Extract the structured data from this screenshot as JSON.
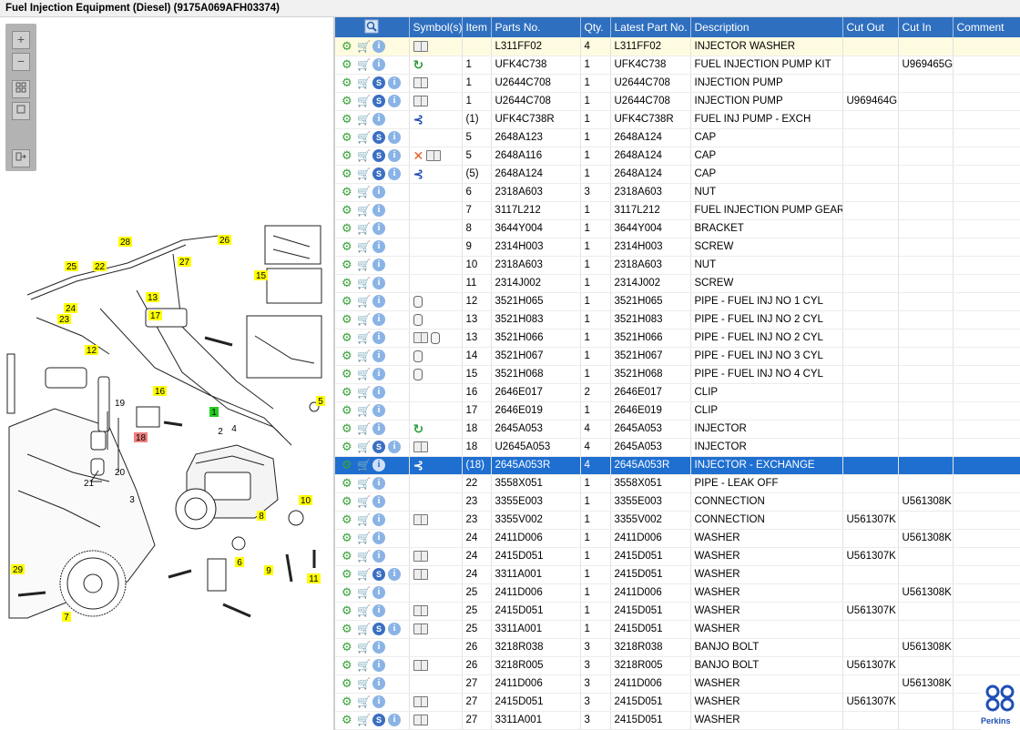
{
  "window": {
    "title": "Fuel Injection Equipment (Diesel) (9175A069AFH03374)"
  },
  "zoom_toolbar": {
    "zoom_in": "+",
    "zoom_out": "−"
  },
  "diagram": {
    "callouts": [
      "28",
      "26",
      "25",
      "22",
      "27",
      "13",
      "15",
      "24",
      "23",
      "17",
      "12",
      "5",
      "16",
      "19",
      "1",
      "2",
      "4",
      "18",
      "20",
      "21",
      "3",
      "10",
      "8",
      "6",
      "29",
      "9",
      "11",
      "7"
    ]
  },
  "table": {
    "headers": [
      "",
      "Symbol(s)",
      "Item",
      "Parts No.",
      "Qty.",
      "Latest Part No.",
      "Description",
      "Cut Out",
      "Cut In",
      "Comment"
    ],
    "rows": [
      {
        "item": "",
        "parts_no": "L311FF02",
        "qty": "4",
        "latest": "L311FF02",
        "desc": "INJECTOR WASHER",
        "cut_out": "",
        "cut_in": "",
        "comment": "",
        "s": false,
        "multi": false,
        "syms": [
          "book"
        ],
        "state": "hl"
      },
      {
        "item": "1",
        "parts_no": "UFK4C738",
        "qty": "1",
        "latest": "UFK4C738",
        "desc": "FUEL INJECTION PUMP KIT",
        "cut_out": "",
        "cut_in": "U969465G",
        "comment": "",
        "s": false,
        "multi": true,
        "syms": [
          "recycle"
        ],
        "state": ""
      },
      {
        "item": "1",
        "parts_no": "U2644C708",
        "qty": "1",
        "latest": "U2644C708",
        "desc": "INJECTION PUMP",
        "cut_out": "",
        "cut_in": "",
        "comment": "",
        "s": true,
        "multi": true,
        "syms": [
          "book"
        ],
        "state": ""
      },
      {
        "item": "1",
        "parts_no": "U2644C708",
        "qty": "1",
        "latest": "U2644C708",
        "desc": "INJECTION PUMP",
        "cut_out": "U969464G",
        "cut_in": "",
        "comment": "",
        "s": true,
        "multi": true,
        "syms": [
          "book"
        ],
        "state": ""
      },
      {
        "item": "(1)",
        "parts_no": "UFK4C738R",
        "qty": "1",
        "latest": "UFK4C738R",
        "desc": "FUEL INJ PUMP - EXCH",
        "cut_out": "",
        "cut_in": "",
        "comment": "",
        "s": false,
        "multi": false,
        "syms": [
          "branch"
        ],
        "state": ""
      },
      {
        "item": "5",
        "parts_no": "2648A123",
        "qty": "1",
        "latest": "2648A124",
        "desc": "CAP",
        "cut_out": "",
        "cut_in": "",
        "comment": "",
        "s": true,
        "multi": false,
        "syms": [],
        "state": ""
      },
      {
        "item": "5",
        "parts_no": "2648A116",
        "qty": "1",
        "latest": "2648A124",
        "desc": "CAP",
        "cut_out": "",
        "cut_in": "",
        "comment": "",
        "s": true,
        "multi": false,
        "syms": [
          "x",
          "book"
        ],
        "state": ""
      },
      {
        "item": "(5)",
        "parts_no": "2648A124",
        "qty": "1",
        "latest": "2648A124",
        "desc": "CAP",
        "cut_out": "",
        "cut_in": "",
        "comment": "",
        "s": true,
        "multi": false,
        "syms": [
          "branch"
        ],
        "state": ""
      },
      {
        "item": "6",
        "parts_no": "2318A603",
        "qty": "3",
        "latest": "2318A603",
        "desc": "NUT",
        "cut_out": "",
        "cut_in": "",
        "comment": "",
        "s": false,
        "multi": false,
        "syms": [],
        "state": ""
      },
      {
        "item": "7",
        "parts_no": "3117L212",
        "qty": "1",
        "latest": "3117L212",
        "desc": "FUEL INJECTION PUMP GEAR",
        "cut_out": "",
        "cut_in": "",
        "comment": "",
        "s": false,
        "multi": false,
        "syms": [],
        "state": ""
      },
      {
        "item": "8",
        "parts_no": "3644Y004",
        "qty": "1",
        "latest": "3644Y004",
        "desc": "BRACKET",
        "cut_out": "",
        "cut_in": "",
        "comment": "",
        "s": false,
        "multi": false,
        "syms": [],
        "state": ""
      },
      {
        "item": "9",
        "parts_no": "2314H003",
        "qty": "1",
        "latest": "2314H003",
        "desc": "SCREW",
        "cut_out": "",
        "cut_in": "",
        "comment": "",
        "s": false,
        "multi": false,
        "syms": [],
        "state": ""
      },
      {
        "item": "10",
        "parts_no": "2318A603",
        "qty": "1",
        "latest": "2318A603",
        "desc": "NUT",
        "cut_out": "",
        "cut_in": "",
        "comment": "",
        "s": false,
        "multi": false,
        "syms": [],
        "state": ""
      },
      {
        "item": "11",
        "parts_no": "2314J002",
        "qty": "1",
        "latest": "2314J002",
        "desc": "SCREW",
        "cut_out": "",
        "cut_in": "",
        "comment": "",
        "s": false,
        "multi": false,
        "syms": [],
        "state": ""
      },
      {
        "item": "12",
        "parts_no": "3521H065",
        "qty": "1",
        "latest": "3521H065",
        "desc": "PIPE - FUEL INJ NO 1 CYL",
        "cut_out": "",
        "cut_in": "",
        "comment": "",
        "s": false,
        "multi": false,
        "syms": [
          "cyl"
        ],
        "state": ""
      },
      {
        "item": "13",
        "parts_no": "3521H083",
        "qty": "1",
        "latest": "3521H083",
        "desc": "PIPE - FUEL INJ NO 2 CYL",
        "cut_out": "",
        "cut_in": "",
        "comment": "",
        "s": false,
        "multi": false,
        "syms": [
          "cyl"
        ],
        "state": ""
      },
      {
        "item": "13",
        "parts_no": "3521H066",
        "qty": "1",
        "latest": "3521H066",
        "desc": "PIPE - FUEL INJ NO 2 CYL",
        "cut_out": "",
        "cut_in": "",
        "comment": "",
        "s": false,
        "multi": false,
        "syms": [
          "book",
          "cyl"
        ],
        "state": ""
      },
      {
        "item": "14",
        "parts_no": "3521H067",
        "qty": "1",
        "latest": "3521H067",
        "desc": "PIPE - FUEL INJ NO 3 CYL",
        "cut_out": "",
        "cut_in": "",
        "comment": "",
        "s": false,
        "multi": false,
        "syms": [
          "cyl"
        ],
        "state": ""
      },
      {
        "item": "15",
        "parts_no": "3521H068",
        "qty": "1",
        "latest": "3521H068",
        "desc": "PIPE - FUEL INJ NO 4 CYL",
        "cut_out": "",
        "cut_in": "",
        "comment": "",
        "s": false,
        "multi": false,
        "syms": [
          "cyl"
        ],
        "state": ""
      },
      {
        "item": "16",
        "parts_no": "2646E017",
        "qty": "2",
        "latest": "2646E017",
        "desc": "CLIP",
        "cut_out": "",
        "cut_in": "",
        "comment": "",
        "s": false,
        "multi": false,
        "syms": [],
        "state": ""
      },
      {
        "item": "17",
        "parts_no": "2646E019",
        "qty": "1",
        "latest": "2646E019",
        "desc": "CLIP",
        "cut_out": "",
        "cut_in": "",
        "comment": "",
        "s": false,
        "multi": false,
        "syms": [],
        "state": ""
      },
      {
        "item": "18",
        "parts_no": "2645A053",
        "qty": "4",
        "latest": "2645A053",
        "desc": "INJECTOR",
        "cut_out": "",
        "cut_in": "",
        "comment": "",
        "s": false,
        "multi": true,
        "syms": [
          "recycle"
        ],
        "state": ""
      },
      {
        "item": "18",
        "parts_no": "U2645A053",
        "qty": "4",
        "latest": "2645A053",
        "desc": "INJECTOR",
        "cut_out": "",
        "cut_in": "",
        "comment": "",
        "s": true,
        "multi": true,
        "syms": [
          "book"
        ],
        "state": ""
      },
      {
        "item": "(18)",
        "parts_no": "2645A053R",
        "qty": "4",
        "latest": "2645A053R",
        "desc": "INJECTOR - EXCHANGE",
        "cut_out": "",
        "cut_in": "",
        "comment": "",
        "s": false,
        "multi": false,
        "syms": [
          "branch"
        ],
        "state": "sel"
      },
      {
        "item": "22",
        "parts_no": "3558X051",
        "qty": "1",
        "latest": "3558X051",
        "desc": "PIPE - LEAK OFF",
        "cut_out": "",
        "cut_in": "",
        "comment": "",
        "s": false,
        "multi": false,
        "syms": [],
        "state": ""
      },
      {
        "item": "23",
        "parts_no": "3355E003",
        "qty": "1",
        "latest": "3355E003",
        "desc": "CONNECTION",
        "cut_out": "",
        "cut_in": "U561308K",
        "comment": "",
        "s": false,
        "multi": false,
        "syms": [],
        "state": ""
      },
      {
        "item": "23",
        "parts_no": "3355V002",
        "qty": "1",
        "latest": "3355V002",
        "desc": "CONNECTION",
        "cut_out": "U561307K",
        "cut_in": "",
        "comment": "",
        "s": false,
        "multi": false,
        "syms": [
          "book"
        ],
        "state": ""
      },
      {
        "item": "24",
        "parts_no": "2411D006",
        "qty": "1",
        "latest": "2411D006",
        "desc": "WASHER",
        "cut_out": "",
        "cut_in": "U561308K",
        "comment": "",
        "s": false,
        "multi": false,
        "syms": [],
        "state": ""
      },
      {
        "item": "24",
        "parts_no": "2415D051",
        "qty": "1",
        "latest": "2415D051",
        "desc": "WASHER",
        "cut_out": "U561307K",
        "cut_in": "",
        "comment": "",
        "s": false,
        "multi": false,
        "syms": [
          "book"
        ],
        "state": ""
      },
      {
        "item": "24",
        "parts_no": "3311A001",
        "qty": "1",
        "latest": "2415D051",
        "desc": "WASHER",
        "cut_out": "",
        "cut_in": "",
        "comment": "",
        "s": true,
        "multi": false,
        "syms": [
          "book"
        ],
        "state": ""
      },
      {
        "item": "25",
        "parts_no": "2411D006",
        "qty": "1",
        "latest": "2411D006",
        "desc": "WASHER",
        "cut_out": "",
        "cut_in": "U561308K",
        "comment": "",
        "s": false,
        "multi": false,
        "syms": [],
        "state": ""
      },
      {
        "item": "25",
        "parts_no": "2415D051",
        "qty": "1",
        "latest": "2415D051",
        "desc": "WASHER",
        "cut_out": "U561307K",
        "cut_in": "",
        "comment": "",
        "s": false,
        "multi": false,
        "syms": [
          "book"
        ],
        "state": ""
      },
      {
        "item": "25",
        "parts_no": "3311A001",
        "qty": "1",
        "latest": "2415D051",
        "desc": "WASHER",
        "cut_out": "",
        "cut_in": "",
        "comment": "",
        "s": true,
        "multi": false,
        "syms": [
          "book"
        ],
        "state": ""
      },
      {
        "item": "26",
        "parts_no": "3218R038",
        "qty": "3",
        "latest": "3218R038",
        "desc": "BANJO BOLT",
        "cut_out": "",
        "cut_in": "U561308K",
        "comment": "",
        "s": false,
        "multi": false,
        "syms": [],
        "state": ""
      },
      {
        "item": "26",
        "parts_no": "3218R005",
        "qty": "3",
        "latest": "3218R005",
        "desc": "BANJO BOLT",
        "cut_out": "U561307K",
        "cut_in": "",
        "comment": "",
        "s": false,
        "multi": false,
        "syms": [
          "book"
        ],
        "state": ""
      },
      {
        "item": "27",
        "parts_no": "2411D006",
        "qty": "3",
        "latest": "2411D006",
        "desc": "WASHER",
        "cut_out": "",
        "cut_in": "U561308K",
        "comment": "",
        "s": false,
        "multi": false,
        "syms": [],
        "state": ""
      },
      {
        "item": "27",
        "parts_no": "2415D051",
        "qty": "3",
        "latest": "2415D051",
        "desc": "WASHER",
        "cut_out": "U561307K",
        "cut_in": "",
        "comment": "",
        "s": false,
        "multi": false,
        "syms": [
          "book"
        ],
        "state": ""
      },
      {
        "item": "27",
        "parts_no": "3311A001",
        "qty": "3",
        "latest": "2415D051",
        "desc": "WASHER",
        "cut_out": "",
        "cut_in": "",
        "comment": "",
        "s": true,
        "multi": false,
        "syms": [
          "book"
        ],
        "state": ""
      }
    ]
  },
  "logo": {
    "text": "Perkins"
  },
  "colors": {
    "header": "#2f6fbf",
    "selected_row": "#1f6fd1",
    "highlight_row": "#fffbe0",
    "callout_yellow": "#ffff00",
    "callout_green": "#22cc22",
    "callout_red": "#f08080"
  }
}
